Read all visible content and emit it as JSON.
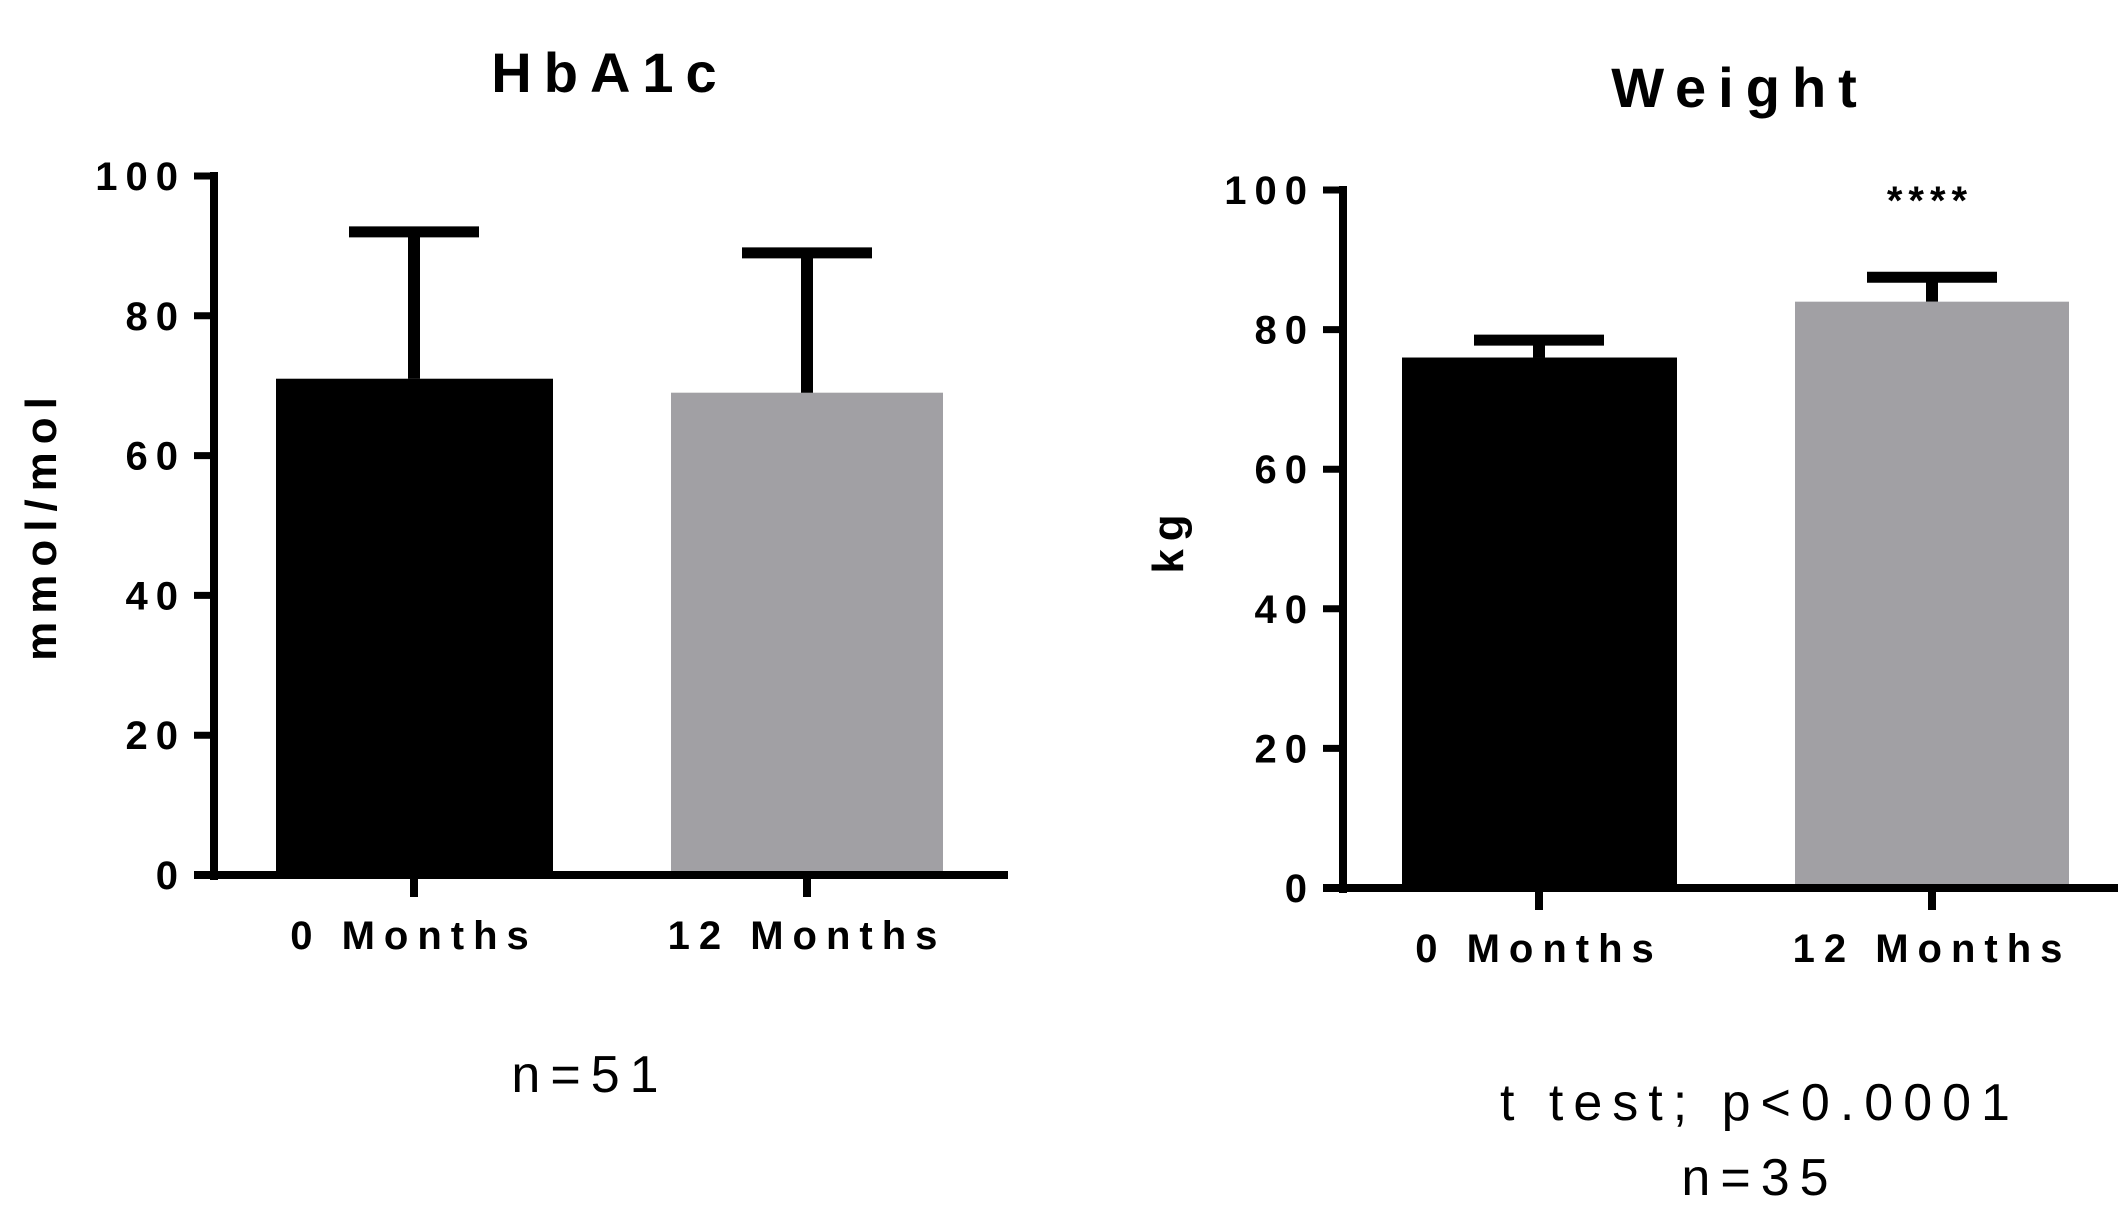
{
  "chart_data": [
    {
      "type": "bar",
      "title": "HbA1c",
      "ylabel": "mmol/mol",
      "xlabel": "",
      "categories": [
        "0 Months",
        "12 Months"
      ],
      "values": [
        71,
        69
      ],
      "error_upper": [
        92,
        89
      ],
      "ylim": [
        0,
        100
      ],
      "yticks": [
        "0",
        "20",
        "40",
        "60",
        "80",
        "100"
      ],
      "colors": [
        "#000000",
        "#a1a0a4"
      ],
      "significance": "",
      "notes": [
        "n=51"
      ]
    },
    {
      "type": "bar",
      "title": "Weight",
      "ylabel": "kg",
      "xlabel": "",
      "categories": [
        "0 Months",
        "12 Months"
      ],
      "values": [
        76,
        84
      ],
      "error_upper": [
        78.5,
        87.5
      ],
      "ylim": [
        0,
        100
      ],
      "yticks": [
        "0",
        "20",
        "40",
        "60",
        "80",
        "100"
      ],
      "colors": [
        "#000000",
        "#a1a0a4"
      ],
      "significance": "****",
      "notes": [
        "t test; p<0.0001",
        "n=35"
      ]
    }
  ]
}
